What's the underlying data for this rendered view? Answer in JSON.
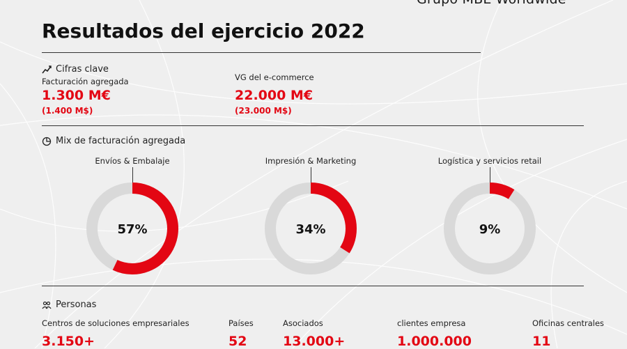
{
  "brand": "Grupo MBE Worldwide",
  "title": "Resultados del ejercicio 2022",
  "key_figures": {
    "heading": "Cifras clave",
    "turnover": {
      "label": "Facturación agregada",
      "value": "1.300 M€",
      "sub": "(1.400 M$)"
    },
    "ecommerce": {
      "label": "VG del e-commerce",
      "value": "22.000 M€",
      "sub": "(23.000 M$)"
    }
  },
  "mix": {
    "heading": "Mix de facturación agregada",
    "donuts": [
      {
        "label": "Envíos & Embalaje",
        "percent_text": "57%",
        "value": 57
      },
      {
        "label": "Impresión & Marketing",
        "percent_text": "34%",
        "value": 34
      },
      {
        "label": "Logística y servicios retail",
        "percent_text": "9%",
        "value": 9
      }
    ],
    "colors": {
      "fill": "#e30613",
      "track": "#d9d9d9"
    }
  },
  "people": {
    "heading": "Personas",
    "stats": [
      {
        "label": "Centros de soluciones empresariales",
        "value": "3.150+"
      },
      {
        "label": "Países",
        "value": "52"
      },
      {
        "label": "Asociados",
        "value": "13.000+"
      },
      {
        "label": "clientes empresa",
        "value": "1.000.000"
      },
      {
        "label": "Oficinas centrales",
        "value": "11"
      }
    ]
  }
}
